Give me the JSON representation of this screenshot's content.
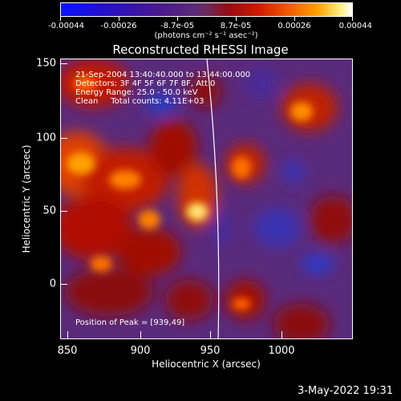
{
  "colorbar": {
    "ticks": [
      "-0.00044",
      "-0.00026",
      "-8.7e-05",
      "8.7e-05",
      "0.00026",
      "0.00044"
    ],
    "units": "(photons cm⁻² s⁻¹ asec⁻²)"
  },
  "title": "Reconstructed RHESSI Image",
  "info": {
    "time": "21-Sep-2004 13:40:40.000 to 13:44:00.000",
    "detectors": "Detectors: 3F 4F 5F 6F 7F 8F, Att 0",
    "energy": "Energy Range: 25.0 - 50.0 keV",
    "clean": "Clean     Total counts: 4.11E+03",
    "peak": "Position of Peak = [939,49]"
  },
  "axes": {
    "x_ticks": [
      "850",
      "900",
      "950",
      "1000"
    ],
    "y_ticks": [
      "150",
      "100",
      "50",
      "0"
    ],
    "x_title": "Heliocentric X (arcsec)",
    "y_title": "Heliocentric Y (arcsec)"
  },
  "footer": {
    "date": "3-May-2022 19:31"
  },
  "colors": {
    "background": "#000000",
    "axis": "#ffffff"
  }
}
